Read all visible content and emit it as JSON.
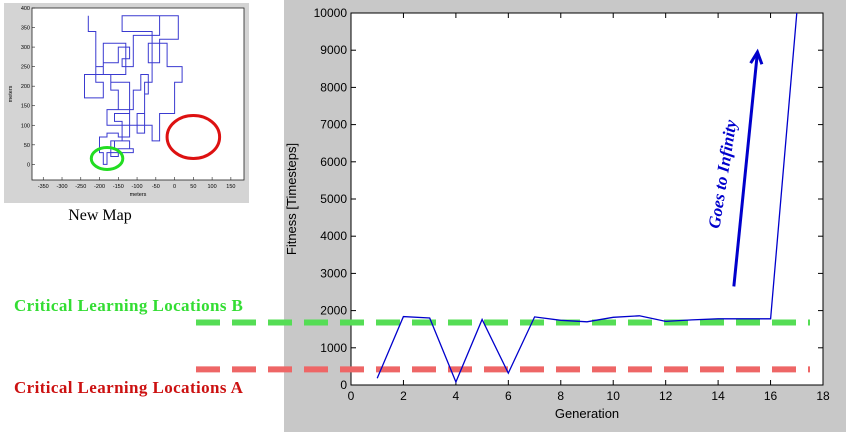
{
  "chart_data": [
    {
      "type": "line",
      "title": "",
      "xlabel": "meters",
      "ylabel": "meters",
      "xlim": [
        -380,
        185
      ],
      "ylim": [
        -40,
        400
      ],
      "xticks": [
        -350,
        -300,
        -250,
        -200,
        -150,
        -100,
        -50,
        0,
        50,
        100,
        150
      ],
      "yticks": [
        0,
        50,
        100,
        150,
        200,
        250,
        300,
        350,
        400
      ],
      "caption": "New Map",
      "maze_path": [
        [
          -230,
          380
        ],
        [
          -230,
          340
        ],
        [
          -210,
          340
        ],
        [
          -210,
          210
        ],
        [
          -190,
          210
        ],
        [
          -190,
          170
        ],
        [
          -240,
          170
        ],
        [
          -240,
          230
        ],
        [
          -190,
          230
        ],
        [
          -190,
          310
        ],
        [
          -130,
          310
        ],
        [
          -130,
          230
        ],
        [
          -170,
          230
        ],
        [
          -170,
          190
        ],
        [
          -150,
          190
        ],
        [
          -150,
          140
        ],
        [
          -110,
          140
        ],
        [
          -110,
          190
        ],
        [
          -90,
          190
        ],
        [
          -90,
          230
        ],
        [
          -70,
          230
        ],
        [
          -70,
          180
        ],
        [
          -80,
          180
        ],
        [
          -80,
          130
        ],
        [
          -100,
          130
        ],
        [
          -100,
          80
        ],
        [
          -80,
          80
        ],
        [
          -80,
          210
        ],
        [
          -60,
          210
        ],
        [
          -60,
          310
        ],
        [
          -60,
          340
        ],
        [
          -140,
          340
        ],
        [
          -140,
          380
        ],
        [
          10,
          380
        ],
        [
          10,
          320
        ],
        [
          -40,
          320
        ],
        [
          -40,
          260
        ],
        [
          -70,
          260
        ],
        [
          -70,
          310
        ],
        [
          -60,
          310
        ],
        [
          -20,
          310
        ],
        [
          -20,
          250
        ],
        [
          20,
          250
        ],
        [
          20,
          210
        ],
        [
          0,
          210
        ],
        [
          0,
          130
        ],
        [
          -40,
          130
        ],
        [
          -40,
          60
        ],
        [
          -60,
          60
        ],
        [
          -60,
          80
        ],
        [
          -60,
          100
        ],
        [
          -180,
          100
        ],
        [
          -180,
          140
        ],
        [
          -120,
          140
        ],
        [
          -120,
          130
        ],
        [
          -160,
          130
        ],
        [
          -160,
          110
        ],
        [
          -140,
          110
        ],
        [
          -140,
          60
        ],
        [
          -160,
          60
        ],
        [
          -160,
          40
        ],
        [
          -120,
          40
        ],
        [
          -120,
          60
        ],
        [
          -160,
          60
        ],
        [
          -170,
          60
        ],
        [
          -170,
          20
        ],
        [
          -150,
          20
        ],
        [
          -150,
          40
        ],
        [
          -110,
          40
        ],
        [
          -110,
          30
        ],
        [
          -180,
          30
        ],
        [
          -180,
          0
        ],
        [
          -190,
          0
        ],
        [
          -190,
          30
        ],
        [
          -200,
          30
        ],
        [
          -200,
          70
        ],
        [
          -180,
          70
        ],
        [
          -180,
          80
        ],
        [
          -150,
          80
        ],
        [
          -150,
          70
        ],
        [
          -120,
          70
        ],
        [
          -120,
          210
        ],
        [
          -170,
          210
        ],
        [
          -170,
          230
        ],
        [
          -210,
          230
        ],
        [
          -210,
          250
        ],
        [
          -190,
          250
        ],
        [
          -190,
          260
        ],
        [
          -150,
          260
        ],
        [
          -150,
          300
        ],
        [
          -120,
          300
        ],
        [
          -120,
          270
        ],
        [
          -140,
          270
        ],
        [
          -140,
          250
        ],
        [
          -110,
          250
        ],
        [
          -110,
          330
        ],
        [
          -40,
          330
        ],
        [
          -40,
          380
        ],
        [
          10,
          380
        ]
      ],
      "annotations": [
        {
          "shape": "circle",
          "color": "#22dd22",
          "cx": -180,
          "cy": 15,
          "rx": 42,
          "ry": 28
        },
        {
          "shape": "circle",
          "color": "#dd1111",
          "cx": 50,
          "cy": 70,
          "rx": 70,
          "ry": 55
        }
      ]
    },
    {
      "type": "line",
      "title": "",
      "xlabel": "Generation",
      "ylabel": "Fitness [Timesteps]",
      "xlim": [
        0,
        18
      ],
      "ylim": [
        0,
        10000
      ],
      "xticks": [
        0,
        2,
        4,
        6,
        8,
        10,
        12,
        14,
        16,
        18
      ],
      "yticks": [
        0,
        1000,
        2000,
        3000,
        4000,
        5000,
        6000,
        7000,
        8000,
        9000,
        10000
      ],
      "series": [
        {
          "name": "fitness",
          "color": "#0000cc",
          "x": [
            1,
            2,
            3,
            4,
            5,
            6,
            7,
            8,
            9,
            10,
            11,
            12,
            13,
            14,
            15,
            16,
            17
          ],
          "y": [
            180,
            1840,
            1800,
            80,
            1760,
            320,
            1830,
            1740,
            1700,
            1820,
            1860,
            1710,
            1750,
            1780,
            1780,
            1780,
            10000
          ]
        }
      ],
      "reference_lines": [
        {
          "name": "Critical Learning Locations B",
          "y": 1680,
          "color": "#55dd55"
        },
        {
          "name": "Critical Learning Locations A",
          "y": 420,
          "color": "#ee6666"
        }
      ],
      "arrow": {
        "from": [
          14.6,
          2650
        ],
        "to": [
          15.5,
          8950
        ],
        "color": "#0000cc",
        "label": "Goes to Infinity"
      }
    }
  ],
  "labels": {
    "map_caption": "New Map",
    "critical_b": "Critical Learning Locations B",
    "critical_a": "Critical Learning Locations A",
    "arrow_text": "Goes to Infinity"
  }
}
